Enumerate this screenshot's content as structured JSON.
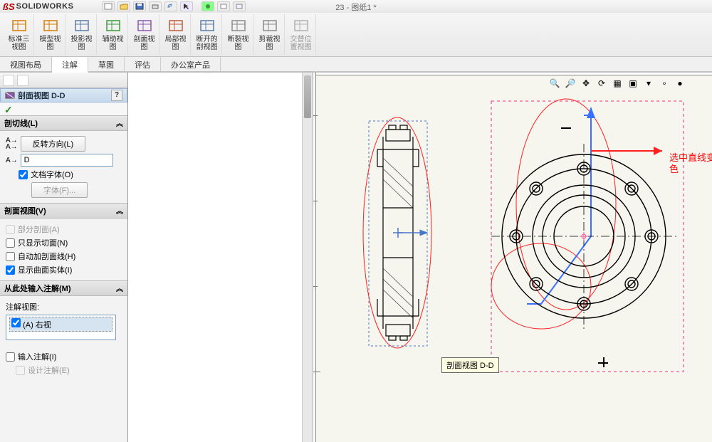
{
  "app": {
    "logo_icon": "ßS",
    "logo_text": "SOLIDWORKS",
    "doc_title": "23 - 图纸1 *"
  },
  "ribbon": [
    {
      "label": "标准三\n视图",
      "dim": false,
      "color": "#d97a00"
    },
    {
      "label": "模型视\n图",
      "dim": false,
      "color": "#d97a00"
    },
    {
      "label": "投影视\n图",
      "dim": false,
      "color": "#5a7aa8"
    },
    {
      "label": "辅助视\n图",
      "dim": false,
      "color": "#3a9a3a"
    },
    {
      "label": "剖面视\n图",
      "dim": false,
      "color": "#8a5ab0"
    },
    {
      "label": "局部视\n图",
      "dim": false,
      "color": "#c05a3a"
    },
    {
      "label": "断开的\n剖视图",
      "dim": false,
      "color": "#5a7aa8"
    },
    {
      "label": "断裂视\n图",
      "dim": false,
      "color": "#8a8a8a"
    },
    {
      "label": "剪裁视\n图",
      "dim": false,
      "color": "#8a8a8a"
    },
    {
      "label": "交替位\n置视图",
      "dim": true,
      "color": "#b0b0b0"
    }
  ],
  "tabs": [
    {
      "label": "视图布局",
      "active": false
    },
    {
      "label": "注解",
      "active": true
    },
    {
      "label": "草图",
      "active": false
    },
    {
      "label": "评估",
      "active": false
    },
    {
      "label": "办公室产品",
      "active": false
    }
  ],
  "propmgr": {
    "title": "剖面视图 D-D",
    "help": "?",
    "confirm_icon": "✓",
    "groups": {
      "cutline": {
        "title": "剖切线(L)",
        "chev": "︽",
        "reverse_btn": "反转方向(L)",
        "arrow_icons": "A→\nA→",
        "input_label": "A→",
        "input_value": "D",
        "doc_font": {
          "label": "文档字体(O)",
          "checked": true
        },
        "font_btn": "字体(F)..."
      },
      "sectionview": {
        "title": "剖面视图(V)",
        "chev": "︽",
        "partial": {
          "label": "部分剖面(A)",
          "checked": false,
          "disabled": true
        },
        "onlyface": {
          "label": "只显示切面(N)",
          "checked": false
        },
        "autoline": {
          "label": "自动加剖面线(H)",
          "checked": false
        },
        "showsurf": {
          "label": "显示曲面实体(I)",
          "checked": true
        }
      },
      "importnotes": {
        "title": "从此处输入注解(M)",
        "chev": "︽",
        "annot_view_label": "注解视图:",
        "annot_view_item": "(A) 右视",
        "annot_view_checked": true,
        "input_annot": {
          "label": "输入注解(I)",
          "checked": false
        },
        "design_annot": {
          "label": "设计注解(E)",
          "checked": false,
          "disabled": true
        }
      }
    }
  },
  "canvas": {
    "bg": "#f6f5ee",
    "viewtools": [
      {
        "name": "zoom-fit-icon",
        "glyph": "🔍"
      },
      {
        "name": "zoom-area-icon",
        "glyph": "🔎"
      },
      {
        "name": "pan-icon",
        "glyph": "✥"
      },
      {
        "name": "rotate-icon",
        "glyph": "⟳"
      },
      {
        "name": "section-icon",
        "glyph": "▦"
      },
      {
        "name": "display-icon",
        "glyph": "▣"
      },
      {
        "name": "shade-icon",
        "glyph": "▾"
      },
      {
        "name": "xray-icon",
        "glyph": "∘"
      },
      {
        "name": "more-icon",
        "glyph": "●"
      }
    ],
    "tooltip": "剖面视图 D-D",
    "annotation_text": "选中直线变成蓝\n色",
    "section_label": "D"
  },
  "colors": {
    "accent_blue": "#4a76c8",
    "selection": "#f05a9a",
    "annotation_red": "#ff2020",
    "sheet": "#f6f5ee"
  }
}
